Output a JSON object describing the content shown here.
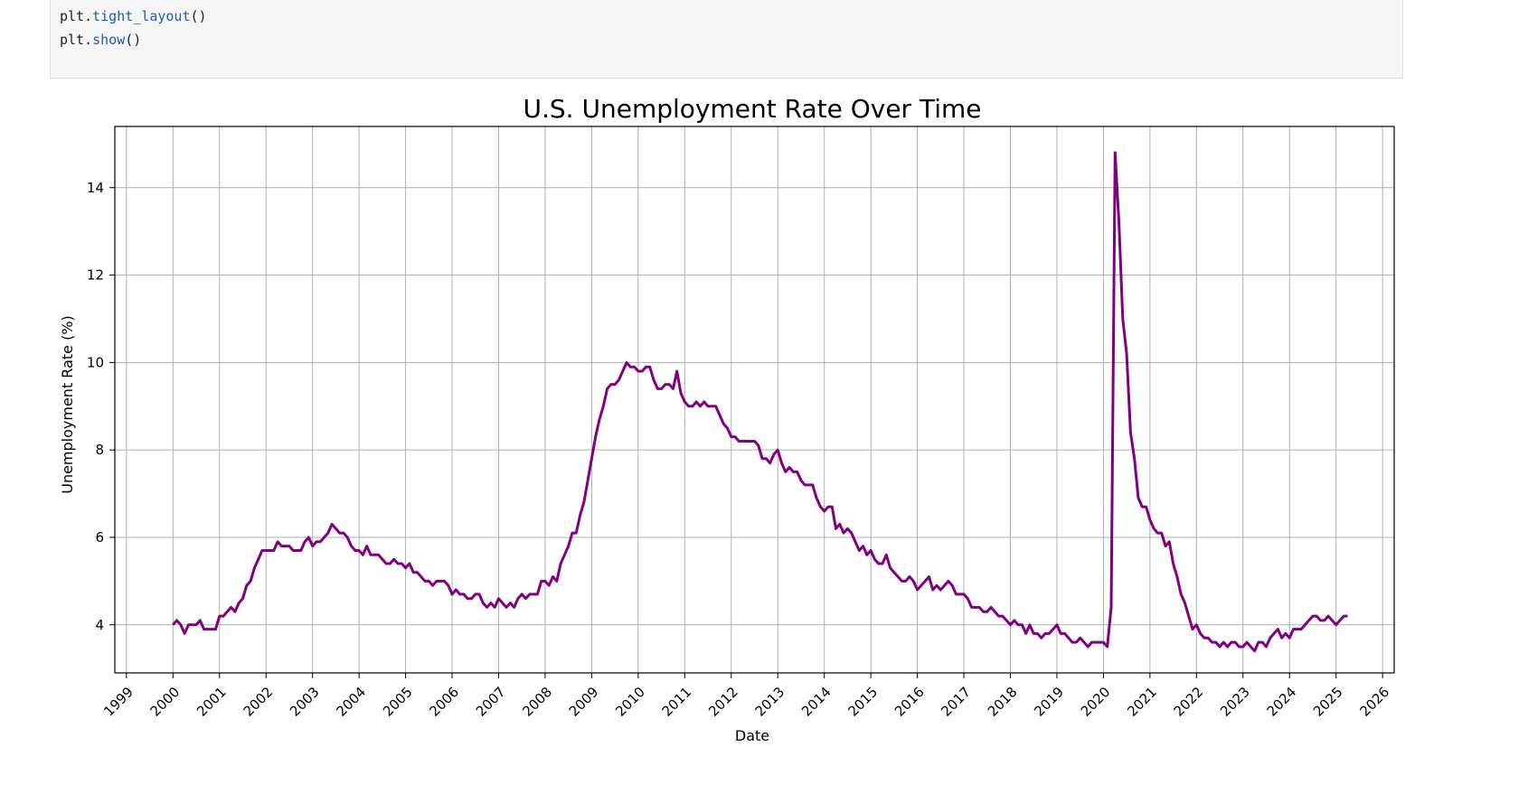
{
  "code_cell": {
    "lines": [
      {
        "obj": "plt.",
        "fn": "tight_layout",
        "args": "()"
      },
      {
        "obj": "plt.",
        "fn": "show",
        "args": "()"
      }
    ]
  },
  "chart_data": {
    "type": "line",
    "title": "U.S. Unemployment Rate Over Time",
    "xlabel": "Date",
    "ylabel": "Unemployment Rate (%)",
    "xlim": [
      "1998-10",
      "2026-04"
    ],
    "ylim": [
      2.9,
      15.4
    ],
    "x_ticks": [
      "1999",
      "2000",
      "2001",
      "2002",
      "2003",
      "2004",
      "2005",
      "2006",
      "2007",
      "2008",
      "2009",
      "2010",
      "2011",
      "2012",
      "2013",
      "2014",
      "2015",
      "2016",
      "2017",
      "2018",
      "2019",
      "2020",
      "2021",
      "2022",
      "2023",
      "2024",
      "2025",
      "2026"
    ],
    "y_ticks": [
      4,
      6,
      8,
      10,
      12,
      14
    ],
    "grid": true,
    "line_color": "#800080",
    "series": [
      {
        "start": "2000-01",
        "frequency": "monthly",
        "values": [
          4.0,
          4.1,
          4.0,
          3.8,
          4.0,
          4.0,
          4.0,
          4.1,
          3.9,
          3.9,
          3.9,
          3.9,
          4.2,
          4.2,
          4.3,
          4.4,
          4.3,
          4.5,
          4.6,
          4.9,
          5.0,
          5.3,
          5.5,
          5.7,
          5.7,
          5.7,
          5.7,
          5.9,
          5.8,
          5.8,
          5.8,
          5.7,
          5.7,
          5.7,
          5.9,
          6.0,
          5.8,
          5.9,
          5.9,
          6.0,
          6.1,
          6.3,
          6.2,
          6.1,
          6.1,
          6.0,
          5.8,
          5.7,
          5.7,
          5.6,
          5.8,
          5.6,
          5.6,
          5.6,
          5.5,
          5.4,
          5.4,
          5.5,
          5.4,
          5.4,
          5.3,
          5.4,
          5.2,
          5.2,
          5.1,
          5.0,
          5.0,
          4.9,
          5.0,
          5.0,
          5.0,
          4.9,
          4.7,
          4.8,
          4.7,
          4.7,
          4.6,
          4.6,
          4.7,
          4.7,
          4.5,
          4.4,
          4.5,
          4.4,
          4.6,
          4.5,
          4.4,
          4.5,
          4.4,
          4.6,
          4.7,
          4.6,
          4.7,
          4.7,
          4.7,
          5.0,
          5.0,
          4.9,
          5.1,
          5.0,
          5.4,
          5.6,
          5.8,
          6.1,
          6.1,
          6.5,
          6.8,
          7.3,
          7.8,
          8.3,
          8.7,
          9.0,
          9.4,
          9.5,
          9.5,
          9.6,
          9.8,
          10.0,
          9.9,
          9.9,
          9.8,
          9.8,
          9.9,
          9.9,
          9.6,
          9.4,
          9.4,
          9.5,
          9.5,
          9.4,
          9.8,
          9.3,
          9.1,
          9.0,
          9.0,
          9.1,
          9.0,
          9.1,
          9.0,
          9.0,
          9.0,
          8.8,
          8.6,
          8.5,
          8.3,
          8.3,
          8.2,
          8.2,
          8.2,
          8.2,
          8.2,
          8.1,
          7.8,
          7.8,
          7.7,
          7.9,
          8.0,
          7.7,
          7.5,
          7.6,
          7.5,
          7.5,
          7.3,
          7.2,
          7.2,
          7.2,
          6.9,
          6.7,
          6.6,
          6.7,
          6.7,
          6.2,
          6.3,
          6.1,
          6.2,
          6.1,
          5.9,
          5.7,
          5.8,
          5.6,
          5.7,
          5.5,
          5.4,
          5.4,
          5.6,
          5.3,
          5.2,
          5.1,
          5.0,
          5.0,
          5.1,
          5.0,
          4.8,
          4.9,
          5.0,
          5.1,
          4.8,
          4.9,
          4.8,
          4.9,
          5.0,
          4.9,
          4.7,
          4.7,
          4.7,
          4.6,
          4.4,
          4.4,
          4.4,
          4.3,
          4.3,
          4.4,
          4.3,
          4.2,
          4.2,
          4.1,
          4.0,
          4.1,
          4.0,
          4.0,
          3.8,
          4.0,
          3.8,
          3.8,
          3.7,
          3.8,
          3.8,
          3.9,
          4.0,
          3.8,
          3.8,
          3.7,
          3.6,
          3.6,
          3.7,
          3.6,
          3.5,
          3.6,
          3.6,
          3.6,
          3.6,
          3.5,
          4.4,
          14.8,
          13.2,
          11.0,
          10.2,
          8.4,
          7.8,
          6.9,
          6.7,
          6.7,
          6.4,
          6.2,
          6.1,
          6.1,
          5.8,
          5.9,
          5.4,
          5.1,
          4.7,
          4.5,
          4.2,
          3.9,
          4.0,
          3.8,
          3.7,
          3.7,
          3.6,
          3.6,
          3.5,
          3.6,
          3.5,
          3.6,
          3.6,
          3.5,
          3.5,
          3.6,
          3.5,
          3.4,
          3.6,
          3.6,
          3.5,
          3.7,
          3.8,
          3.9,
          3.7,
          3.8,
          3.7,
          3.9,
          3.9,
          3.9,
          4.0,
          4.1,
          4.2,
          4.2,
          4.1,
          4.1,
          4.2,
          4.1,
          4.0,
          4.1,
          4.2,
          4.2
        ]
      }
    ]
  }
}
